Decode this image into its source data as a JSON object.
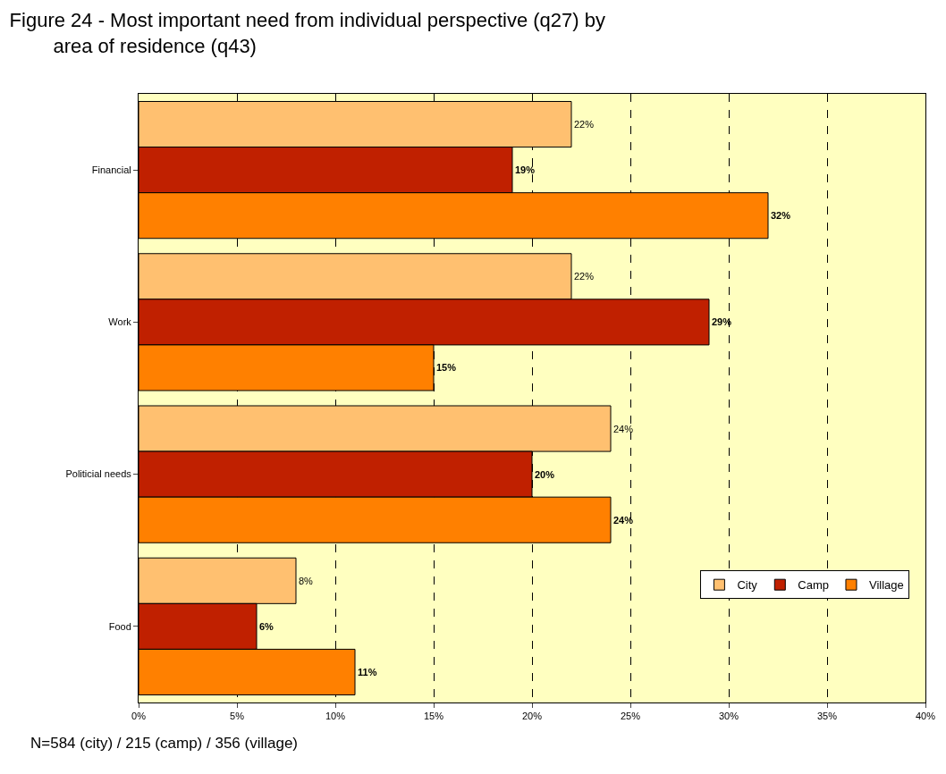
{
  "chart_data": {
    "type": "bar",
    "orientation": "horizontal",
    "title": "Figure 24 - Most important need from individual perspective (q27) by area of residence (q43)",
    "categories": [
      "Financial",
      "Work",
      "Politicial needs",
      "Food"
    ],
    "series": [
      {
        "name": "City",
        "color": "#ffc070",
        "values": [
          22,
          22,
          24,
          8
        ],
        "value_labels": [
          "22%",
          "22%",
          "24%",
          "8%"
        ]
      },
      {
        "name": "Camp",
        "color": "#c02000",
        "values": [
          19,
          29,
          20,
          6
        ],
        "value_labels": [
          "19%",
          "29%",
          "20%",
          "6%"
        ]
      },
      {
        "name": "Village",
        "color": "#ff8000",
        "values": [
          32,
          15,
          24,
          11
        ],
        "value_labels": [
          "32%",
          "15%",
          "24%",
          "11%"
        ]
      }
    ],
    "xlim": [
      0,
      40
    ],
    "xticks": [
      {
        "value": 0,
        "label": "0%"
      },
      {
        "value": 5,
        "label": "5%"
      },
      {
        "value": 10,
        "label": "10%"
      },
      {
        "value": 15,
        "label": "15%"
      },
      {
        "value": 20,
        "label": "20%"
      },
      {
        "value": 25,
        "label": "25%"
      },
      {
        "value": 30,
        "label": "30%"
      },
      {
        "value": 35,
        "label": "35%"
      },
      {
        "value": 40,
        "label": "40%"
      }
    ],
    "grid": "x",
    "legend": "bottom right",
    "annotations": [
      "N=584 (city) / 215 (camp) / 356 (village)"
    ]
  }
}
